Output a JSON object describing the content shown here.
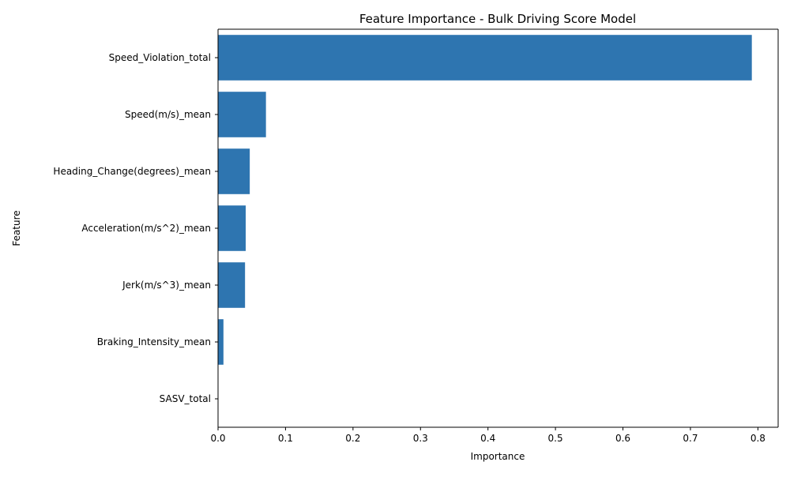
{
  "chart_data": {
    "type": "bar",
    "orientation": "horizontal",
    "title": "Feature Importance - Bulk Driving Score Model",
    "xlabel": "Importance",
    "ylabel": "Feature",
    "categories": [
      "Speed_Violation_total",
      "Speed(m/s)_mean",
      "Heading_Change(degrees)_mean",
      "Acceleration(m/s^2)_mean",
      "Jerk(m/s^3)_mean",
      "Braking_Intensity_mean",
      "SASV_total"
    ],
    "values": [
      0.791,
      0.071,
      0.047,
      0.041,
      0.04,
      0.008,
      0.0
    ],
    "xlim": [
      0.0,
      0.83
    ],
    "xticks": [
      0.0,
      0.1,
      0.2,
      0.3,
      0.4,
      0.5,
      0.6,
      0.7,
      0.8
    ],
    "xtick_labels": [
      "0.0",
      "0.1",
      "0.2",
      "0.3",
      "0.4",
      "0.5",
      "0.6",
      "0.7",
      "0.8"
    ],
    "grid": false,
    "bar_color": "#2e75b0"
  }
}
